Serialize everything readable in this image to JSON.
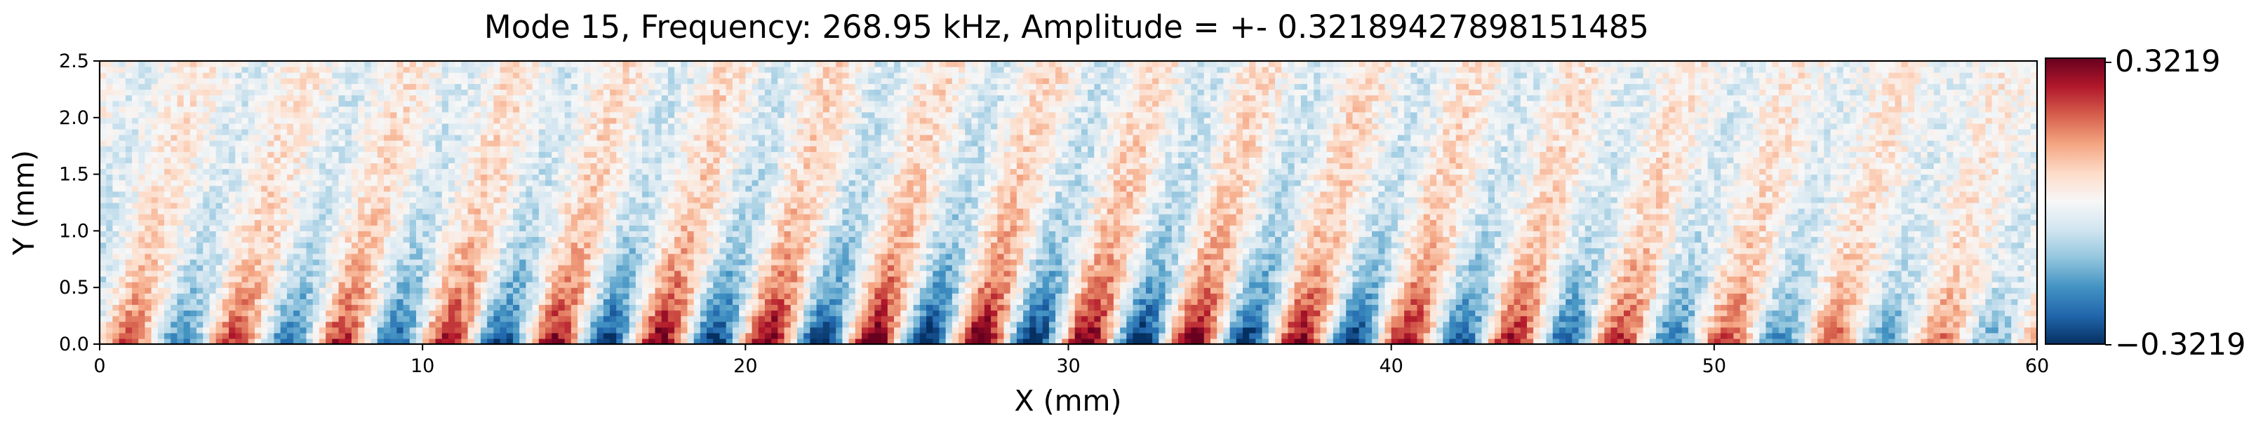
{
  "chart_data": {
    "type": "heatmap",
    "title": "Mode 15, Frequency: 268.95 kHz, Amplitude = +- 0.32189427898151485",
    "xlabel": "X (mm)",
    "ylabel": "Y (mm)",
    "xlim": [
      0,
      60
    ],
    "ylim": [
      0,
      2.5
    ],
    "x_ticks": [
      "0",
      "10",
      "20",
      "30",
      "40",
      "50",
      "60"
    ],
    "x_tick_values": [
      0,
      10,
      20,
      30,
      40,
      50,
      60
    ],
    "y_ticks": [
      "0.0",
      "0.5",
      "1.0",
      "1.5",
      "2.0",
      "2.5"
    ],
    "y_tick_values": [
      0.0,
      0.5,
      1.0,
      1.5,
      2.0,
      2.5
    ],
    "colormap": "RdBu_r",
    "colorbar": {
      "min": -0.3219,
      "max": 0.3219,
      "min_label": "−0.3219",
      "max_label": "0.3219"
    },
    "grid": false,
    "colors": {
      "negative": "#053061",
      "neutral": "#f7f7f7",
      "positive": "#67001f"
    }
  }
}
